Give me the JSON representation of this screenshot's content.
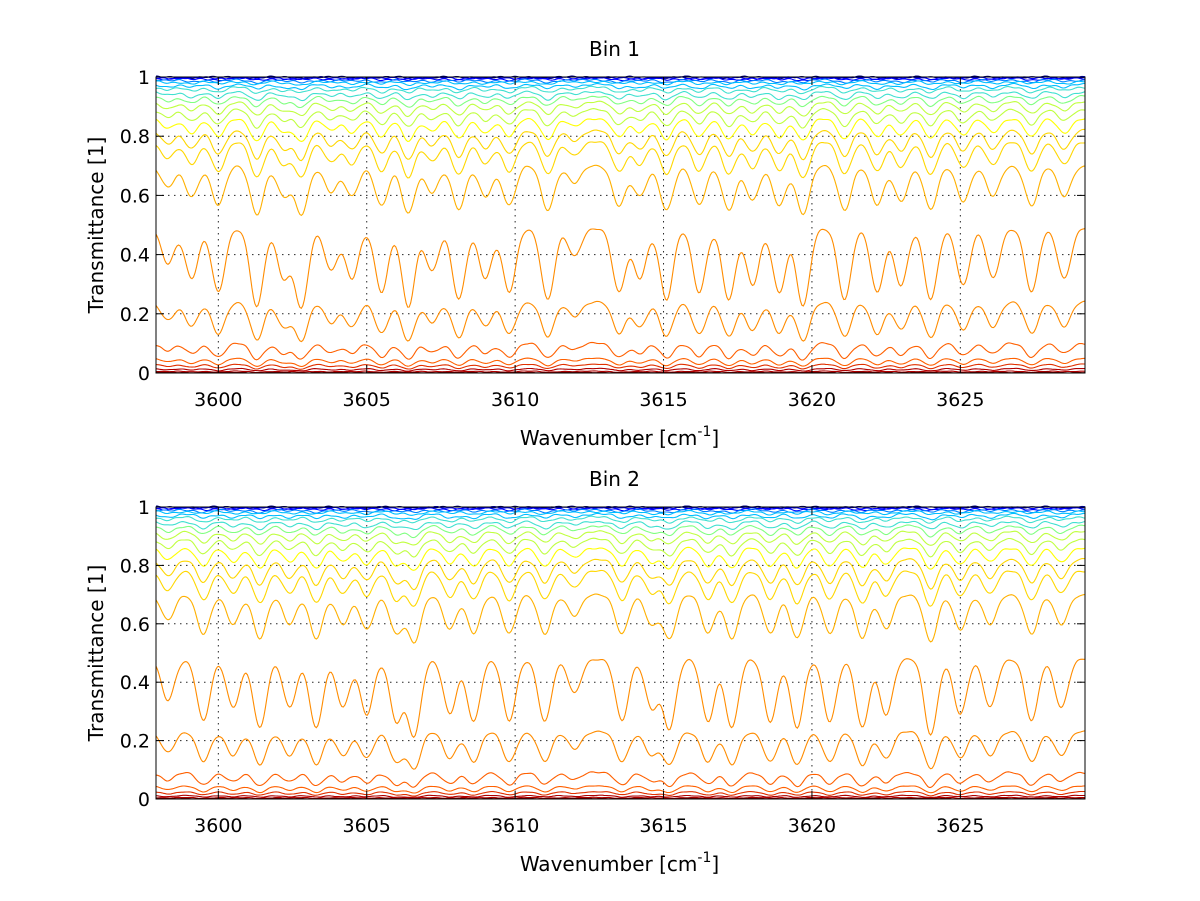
{
  "colors": {
    "palette": [
      "#000080",
      "#0000ff",
      "#0080ff",
      "#00bfff",
      "#40e0d0",
      "#80ff80",
      "#c0ff40",
      "#ffff00",
      "#ffd700",
      "#ffb000",
      "#ff8c00",
      "#ff6000",
      "#e03000",
      "#b00000",
      "#800000"
    ]
  },
  "chart_data": [
    {
      "type": "line",
      "title": "Bin 1",
      "xlabel": "Wavenumber [cm",
      "xlabel_sup": "-1",
      "xlabel_end": "]",
      "ylabel": "Transmittance [1]",
      "xlim": [
        3597.9,
        3629.2
      ],
      "ylim": [
        0,
        1
      ],
      "xticks": [
        3600,
        3605,
        3610,
        3615,
        3620,
        3625
      ],
      "xtick_labels": [
        "3600",
        "3605",
        "3610",
        "3615",
        "3620",
        "3625"
      ],
      "yticks": [
        0,
        0.2,
        0.4,
        0.6,
        0.8,
        1
      ],
      "ytick_labels": [
        "0",
        "0.2",
        "0.4",
        "0.6",
        "0.8",
        "1"
      ],
      "grid": true,
      "series_levels": [
        1.0,
        0.998,
        0.995,
        0.99,
        0.985,
        0.975,
        0.965,
        0.95,
        0.935,
        0.915,
        0.89,
        0.86,
        0.82,
        0.78,
        0.7,
        0.49,
        0.24,
        0.1,
        0.05,
        0.03,
        0.015,
        0.006,
        0.002
      ],
      "absorption_lines": [
        {
          "x": 3598.3,
          "depth": 0.25
        },
        {
          "x": 3599.1,
          "depth": 0.35
        },
        {
          "x": 3600.0,
          "depth": 0.45
        },
        {
          "x": 3601.3,
          "depth": 0.55
        },
        {
          "x": 3602.2,
          "depth": 0.35
        },
        {
          "x": 3602.8,
          "depth": 0.55
        },
        {
          "x": 3603.8,
          "depth": 0.3
        },
        {
          "x": 3604.5,
          "depth": 0.35
        },
        {
          "x": 3605.5,
          "depth": 0.45
        },
        {
          "x": 3606.4,
          "depth": 0.55
        },
        {
          "x": 3607.2,
          "depth": 0.3
        },
        {
          "x": 3608.1,
          "depth": 0.5
        },
        {
          "x": 3609.0,
          "depth": 0.35
        },
        {
          "x": 3609.8,
          "depth": 0.45
        },
        {
          "x": 3611.1,
          "depth": 0.5
        },
        {
          "x": 3612.0,
          "depth": 0.2
        },
        {
          "x": 3613.5,
          "depth": 0.45
        },
        {
          "x": 3614.2,
          "depth": 0.35
        },
        {
          "x": 3615.1,
          "depth": 0.5
        },
        {
          "x": 3616.2,
          "depth": 0.45
        },
        {
          "x": 3617.2,
          "depth": 0.5
        },
        {
          "x": 3618.0,
          "depth": 0.4
        },
        {
          "x": 3618.9,
          "depth": 0.45
        },
        {
          "x": 3619.7,
          "depth": 0.55
        },
        {
          "x": 3621.1,
          "depth": 0.5
        },
        {
          "x": 3622.2,
          "depth": 0.45
        },
        {
          "x": 3623.0,
          "depth": 0.4
        },
        {
          "x": 3624.0,
          "depth": 0.5
        },
        {
          "x": 3625.1,
          "depth": 0.4
        },
        {
          "x": 3626.1,
          "depth": 0.35
        },
        {
          "x": 3627.4,
          "depth": 0.45
        },
        {
          "x": 3628.5,
          "depth": 0.35
        }
      ]
    },
    {
      "type": "line",
      "title": "Bin 2",
      "xlabel": "Wavenumber [cm",
      "xlabel_sup": "-1",
      "xlabel_end": "]",
      "ylabel": "Transmittance [1]",
      "xlim": [
        3597.9,
        3629.2
      ],
      "ylim": [
        0,
        1
      ],
      "xticks": [
        3600,
        3605,
        3610,
        3615,
        3620,
        3625
      ],
      "xtick_labels": [
        "3600",
        "3605",
        "3610",
        "3615",
        "3620",
        "3625"
      ],
      "yticks": [
        0,
        0.2,
        0.4,
        0.6,
        0.8,
        1
      ],
      "ytick_labels": [
        "0",
        "0.2",
        "0.4",
        "0.6",
        "0.8",
        "1"
      ],
      "grid": true,
      "series_levels": [
        1.0,
        0.998,
        0.995,
        0.99,
        0.985,
        0.975,
        0.965,
        0.95,
        0.935,
        0.915,
        0.89,
        0.86,
        0.82,
        0.78,
        0.7,
        0.48,
        0.23,
        0.09,
        0.045,
        0.025,
        0.012,
        0.005,
        0.002
      ],
      "absorption_lines": [
        {
          "x": 3598.3,
          "depth": 0.3
        },
        {
          "x": 3599.5,
          "depth": 0.45
        },
        {
          "x": 3600.5,
          "depth": 0.35
        },
        {
          "x": 3601.4,
          "depth": 0.5
        },
        {
          "x": 3602.4,
          "depth": 0.35
        },
        {
          "x": 3603.3,
          "depth": 0.5
        },
        {
          "x": 3604.2,
          "depth": 0.35
        },
        {
          "x": 3605.0,
          "depth": 0.4
        },
        {
          "x": 3606.0,
          "depth": 0.45
        },
        {
          "x": 3606.6,
          "depth": 0.55
        },
        {
          "x": 3607.8,
          "depth": 0.4
        },
        {
          "x": 3608.6,
          "depth": 0.45
        },
        {
          "x": 3609.8,
          "depth": 0.45
        },
        {
          "x": 3611.0,
          "depth": 0.45
        },
        {
          "x": 3612.0,
          "depth": 0.25
        },
        {
          "x": 3613.6,
          "depth": 0.45
        },
        {
          "x": 3614.6,
          "depth": 0.35
        },
        {
          "x": 3615.2,
          "depth": 0.5
        },
        {
          "x": 3616.5,
          "depth": 0.45
        },
        {
          "x": 3617.3,
          "depth": 0.5
        },
        {
          "x": 3618.6,
          "depth": 0.45
        },
        {
          "x": 3619.5,
          "depth": 0.5
        },
        {
          "x": 3620.6,
          "depth": 0.45
        },
        {
          "x": 3621.7,
          "depth": 0.5
        },
        {
          "x": 3622.5,
          "depth": 0.4
        },
        {
          "x": 3624.0,
          "depth": 0.55
        },
        {
          "x": 3625.0,
          "depth": 0.4
        },
        {
          "x": 3626.0,
          "depth": 0.35
        },
        {
          "x": 3627.4,
          "depth": 0.45
        },
        {
          "x": 3628.4,
          "depth": 0.35
        }
      ]
    }
  ]
}
